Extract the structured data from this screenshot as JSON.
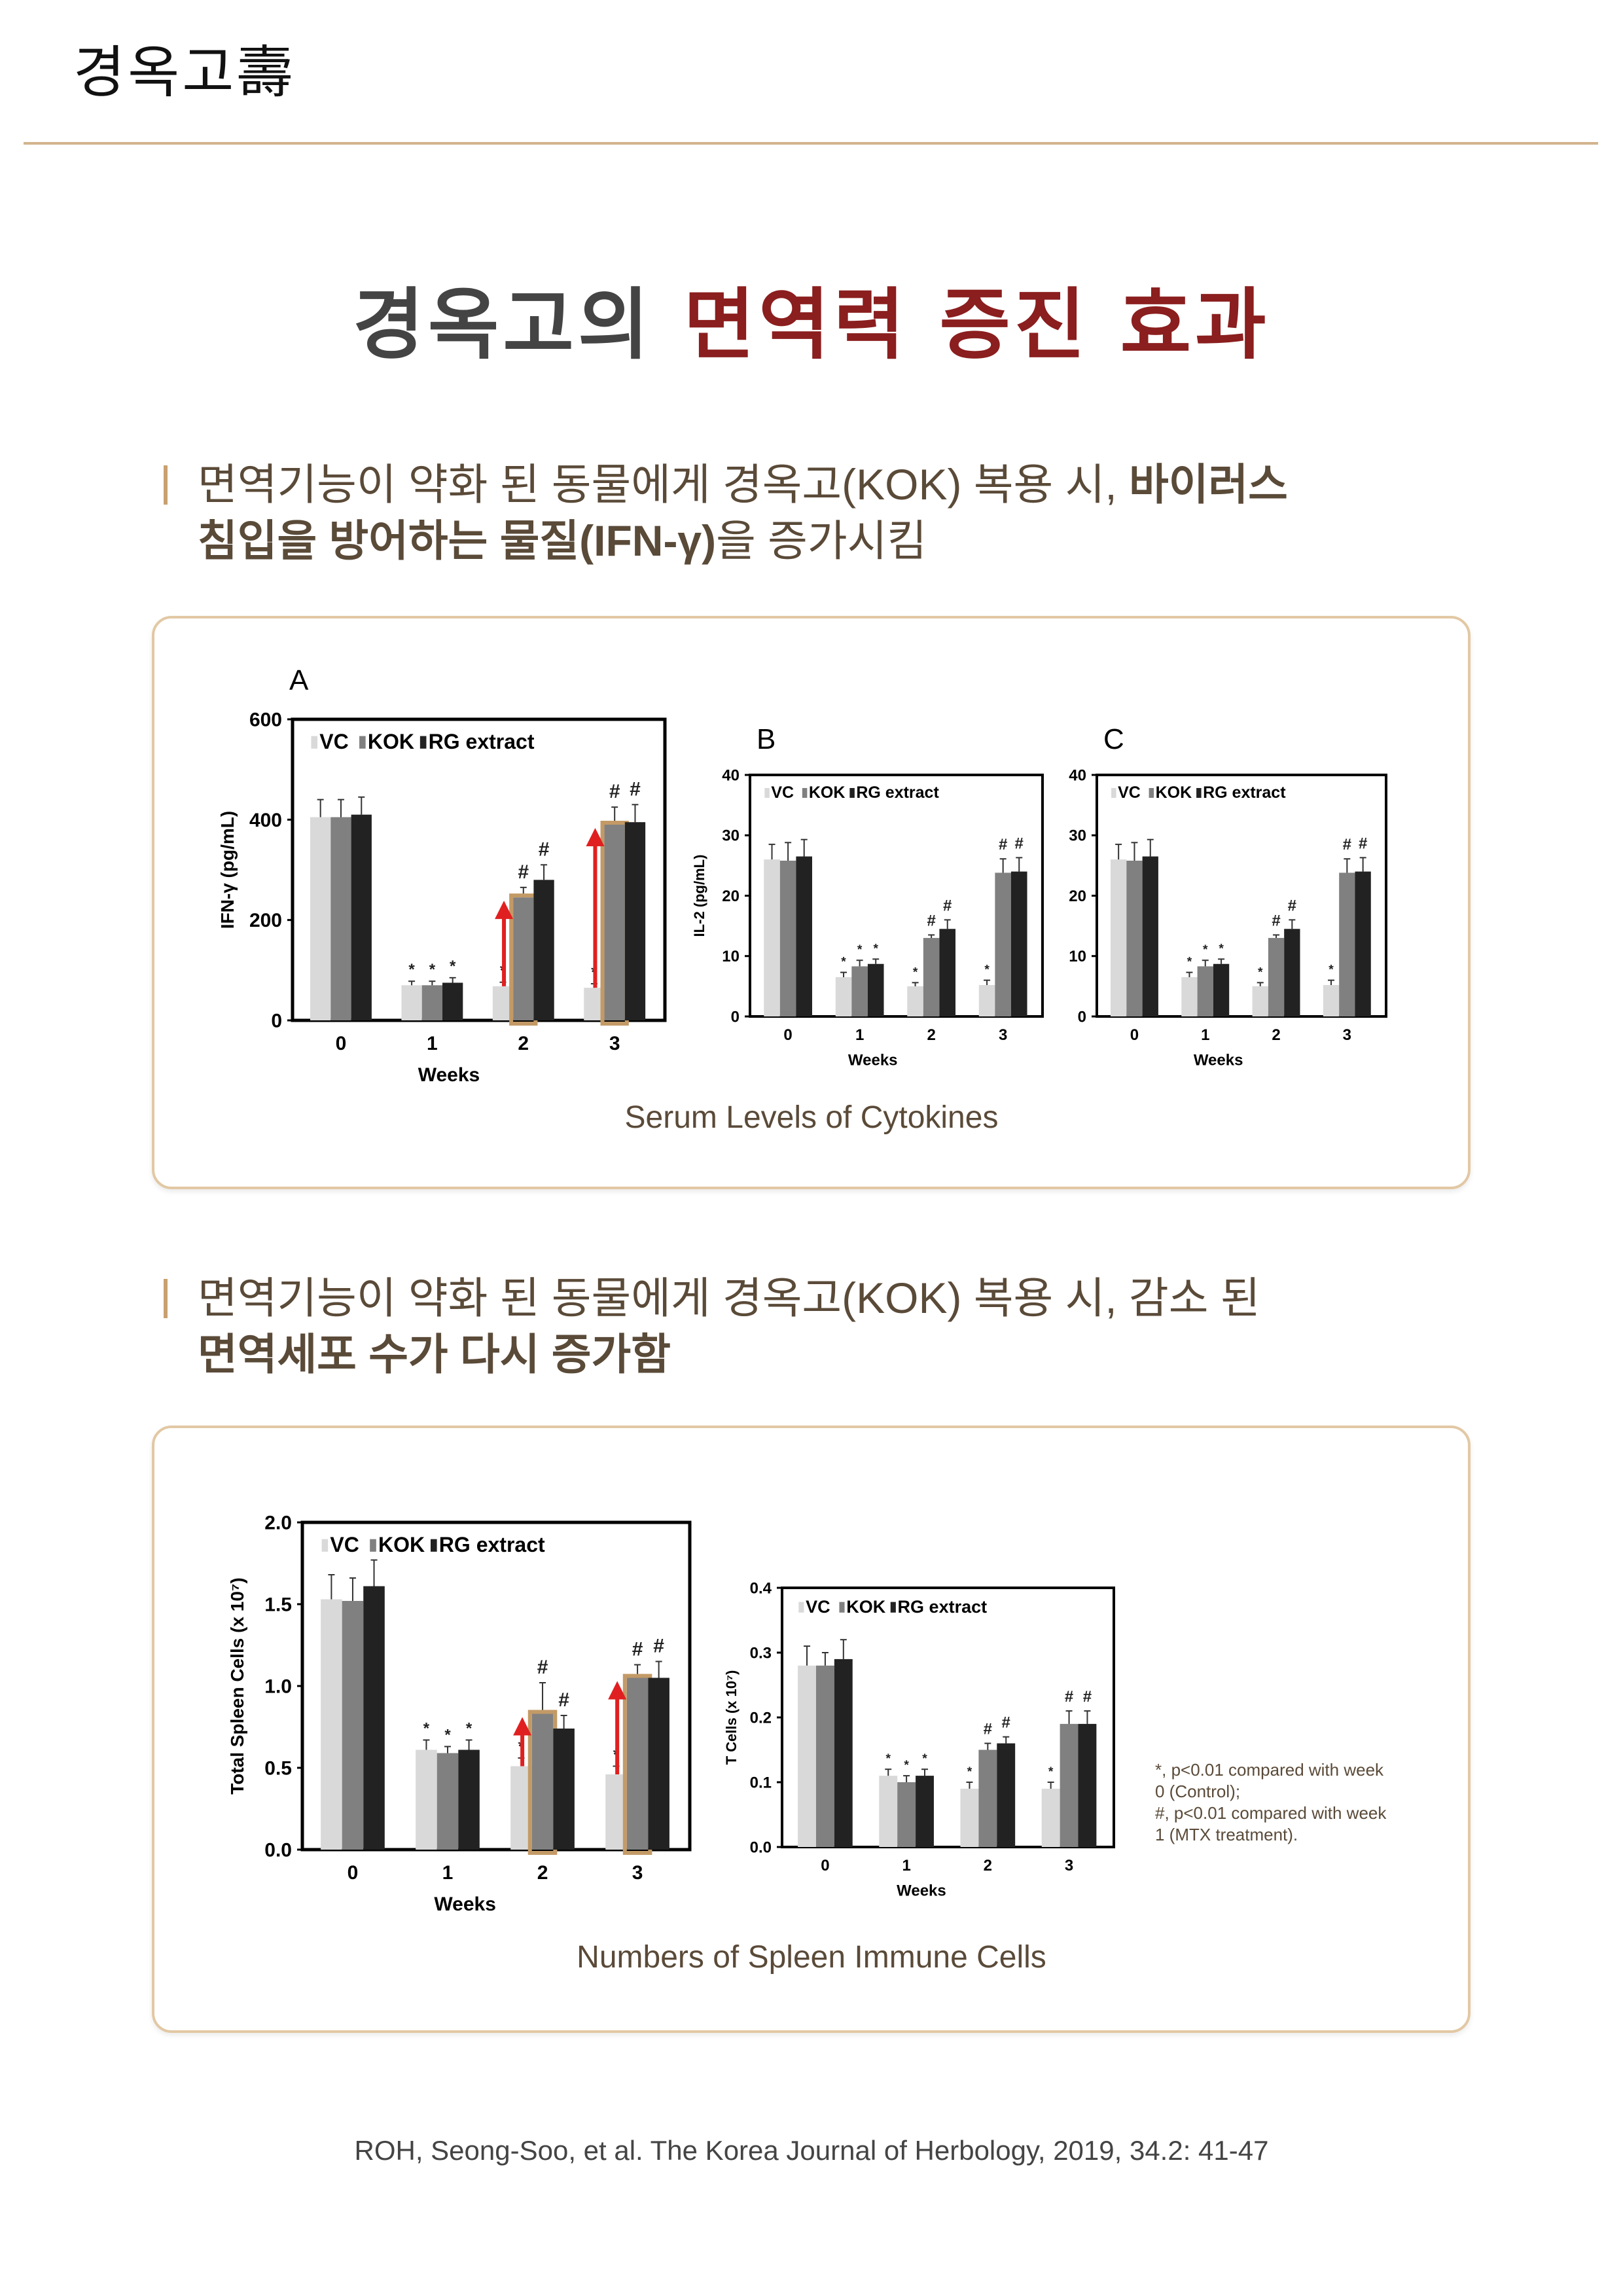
{
  "header": {
    "logo_text": "경옥고壽"
  },
  "title": {
    "part1": "경옥고의 ",
    "part2": "면역력 증진 효과"
  },
  "section1": {
    "line1_normal": "면역기능이 약화 된 동물에게 경옥고(KOK) 복용 시, ",
    "line1_bold": "바이러스",
    "line2_bold": "침입을 방어하는 물질(IFN-γ)",
    "line2_normal": "을 증가시킴",
    "caption": "Serum Levels of Cytokines"
  },
  "section2": {
    "line1_normal": "면역기능이 약화 된 동물에게 경옥고(KOK) 복용 시,  감소 된",
    "line2_bold": "면역세포 수가 다시 증가함",
    "caption": "Numbers of Spleen Immune Cells",
    "footnote": [
      "*, p<0.01 compared with week",
      "0 (Control);",
      "#, p<0.01 compared with week",
      "1 (MTX treatment)."
    ]
  },
  "citation": "ROH, Seong-Soo, et al. The Korea Journal of Herbology, 2019, 34.2: 41-47",
  "colors": {
    "vc": "#d9d9d9",
    "kok": "#808080",
    "rg": "#222222",
    "highlight": "#c39a66",
    "arrow": "#e02020"
  },
  "chart_data": [
    {
      "type": "bar",
      "panel": "A",
      "ylabel": "IFN-γ (pg/mL)",
      "xlabel": "Weeks",
      "categories": [
        "0",
        "1",
        "2",
        "3"
      ],
      "ylim": [
        0,
        600
      ],
      "yticks": [
        "0",
        "200",
        "400",
        "600"
      ],
      "legend": [
        "VC",
        "KOK",
        "RG extract"
      ],
      "series": [
        {
          "name": "VC",
          "values": [
            405,
            70,
            68,
            65
          ],
          "err": [
            35,
            8,
            8,
            8
          ],
          "marks": [
            "",
            "*",
            "*",
            "*"
          ]
        },
        {
          "name": "KOK",
          "values": [
            405,
            70,
            245,
            390
          ],
          "err": [
            35,
            8,
            20,
            35
          ],
          "marks": [
            "",
            "*",
            "#",
            "#"
          ]
        },
        {
          "name": "RG extract",
          "values": [
            410,
            75,
            280,
            395
          ],
          "err": [
            35,
            10,
            30,
            35
          ],
          "marks": [
            "",
            "*",
            "#",
            "#"
          ]
        }
      ],
      "highlight": [
        "2",
        "3"
      ]
    },
    {
      "type": "bar",
      "panel": "B",
      "ylabel": "IL-2 (pg/mL)",
      "xlabel": "Weeks",
      "categories": [
        "0",
        "1",
        "2",
        "3"
      ],
      "ylim": [
        0,
        40
      ],
      "yticks": [
        "0",
        "10",
        "20",
        "30",
        "40"
      ],
      "legend": [
        "VC",
        "KOK",
        "RG extract"
      ],
      "series": [
        {
          "name": "VC",
          "values": [
            26,
            6.5,
            5,
            5.2
          ],
          "err": [
            2.5,
            0.8,
            0.6,
            0.8
          ],
          "marks": [
            "",
            "*",
            "*",
            "*"
          ]
        },
        {
          "name": "KOK",
          "values": [
            25.8,
            8.3,
            13,
            23.8
          ],
          "err": [
            3,
            1,
            0.5,
            2.3
          ],
          "marks": [
            "",
            "*",
            "#",
            "#"
          ]
        },
        {
          "name": "RG extract",
          "values": [
            26.5,
            8.7,
            14.5,
            24
          ],
          "err": [
            2.8,
            0.8,
            1.5,
            2.3
          ],
          "marks": [
            "",
            "*",
            "#",
            "#"
          ]
        }
      ],
      "highlight": []
    },
    {
      "type": "bar",
      "panel": "C",
      "ylabel": "",
      "xlabel": "Weeks",
      "categories": [
        "0",
        "1",
        "2",
        "3"
      ],
      "ylim": [
        0,
        40
      ],
      "yticks": [
        "0",
        "10",
        "20",
        "30",
        "40"
      ],
      "legend": [
        "VC",
        "KOK",
        "RG extract"
      ],
      "series": [
        {
          "name": "VC",
          "values": [
            26,
            6.5,
            5,
            5.2
          ],
          "err": [
            2.5,
            0.8,
            0.6,
            0.8
          ],
          "marks": [
            "",
            "*",
            "*",
            "*"
          ]
        },
        {
          "name": "KOK",
          "values": [
            25.8,
            8.3,
            13,
            23.8
          ],
          "err": [
            3,
            1,
            0.5,
            2.3
          ],
          "marks": [
            "",
            "*",
            "#",
            "#"
          ]
        },
        {
          "name": "RG extract",
          "values": [
            26.5,
            8.7,
            14.5,
            24
          ],
          "err": [
            2.8,
            0.8,
            1.5,
            2.3
          ],
          "marks": [
            "",
            "*",
            "#",
            "#"
          ]
        }
      ],
      "highlight": []
    },
    {
      "type": "bar",
      "panel": "",
      "ylabel": "Total Spleen Cells (x 10⁷)",
      "xlabel": "Weeks",
      "categories": [
        "0",
        "1",
        "2",
        "3"
      ],
      "ylim": [
        0,
        2
      ],
      "yticks": [
        "0.0",
        "0.5",
        "1.0",
        "1.5",
        "2.0"
      ],
      "legend": [
        "VC",
        "KOK",
        "RG extract"
      ],
      "series": [
        {
          "name": "VC",
          "values": [
            1.53,
            0.61,
            0.51,
            0.46
          ],
          "err": [
            0.15,
            0.06,
            0.05,
            0.05
          ],
          "marks": [
            "",
            "*",
            "*",
            "*"
          ]
        },
        {
          "name": "KOK",
          "values": [
            1.52,
            0.59,
            0.83,
            1.05
          ],
          "err": [
            0.14,
            0.04,
            0.19,
            0.08
          ],
          "marks": [
            "",
            "*",
            "#",
            "#"
          ]
        },
        {
          "name": "RG extract",
          "values": [
            1.61,
            0.61,
            0.74,
            1.05
          ],
          "err": [
            0.16,
            0.06,
            0.08,
            0.1
          ],
          "marks": [
            "",
            "*",
            "#",
            "#"
          ]
        }
      ],
      "highlight": [
        "2",
        "3"
      ]
    },
    {
      "type": "bar",
      "panel": "",
      "ylabel": "T Cells (x 10⁷)",
      "xlabel": "Weeks",
      "categories": [
        "0",
        "1",
        "2",
        "3"
      ],
      "ylim": [
        0,
        0.4
      ],
      "yticks": [
        "0.0",
        "0.1",
        "0.2",
        "0.3",
        "0.4"
      ],
      "legend": [
        "VC",
        "KOK",
        "RG extract"
      ],
      "series": [
        {
          "name": "VC",
          "values": [
            0.28,
            0.11,
            0.09,
            0.09
          ],
          "err": [
            0.03,
            0.01,
            0.01,
            0.01
          ],
          "marks": [
            "",
            "*",
            "*",
            "*"
          ]
        },
        {
          "name": "KOK",
          "values": [
            0.28,
            0.1,
            0.15,
            0.19
          ],
          "err": [
            0.02,
            0.01,
            0.01,
            0.02
          ],
          "marks": [
            "",
            "*",
            "#",
            "#"
          ]
        },
        {
          "name": "RG extract",
          "values": [
            0.29,
            0.11,
            0.16,
            0.19
          ],
          "err": [
            0.03,
            0.01,
            0.01,
            0.02
          ],
          "marks": [
            "",
            "*",
            "#",
            "#"
          ]
        }
      ],
      "highlight": []
    }
  ]
}
